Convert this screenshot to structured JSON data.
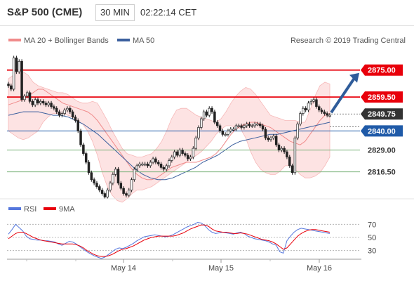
{
  "header": {
    "title": "S&P 500 (CME)",
    "timeframe": "30 MIN",
    "time": "02:22:14 CET"
  },
  "legend": {
    "ma20_bb": "MA 20 + Bollinger Bands",
    "ma50": "MA 50",
    "credit": "Research © 2019 Trading Central",
    "rsi": "RSI",
    "ma9": "9MA"
  },
  "colors": {
    "resistance": "#e8000b",
    "pivot": "#1f5aa8",
    "support": "#76b176",
    "last": "#333333",
    "band_fill": "#fde3e3",
    "ma20": "#f08b8b",
    "ma50": "#3b5f9e",
    "rsi": "#5577dd",
    "ma9": "#e8000b",
    "arrow": "#2f5c9a"
  },
  "chart_data": {
    "type": "line",
    "x_ticks": [
      "May 14",
      "May 15",
      "May 16"
    ],
    "ylim": [
      2803,
      2887
    ],
    "levels": [
      {
        "label": "2875.00",
        "value": 2875.0,
        "kind": "resistance"
      },
      {
        "label": "2859.50",
        "value": 2859.5,
        "kind": "resistance"
      },
      {
        "label": "2849.75",
        "value": 2849.75,
        "kind": "last"
      },
      {
        "label": "2840.00",
        "value": 2840.0,
        "kind": "pivot"
      },
      {
        "label": "2829.00",
        "value": 2829.0,
        "kind": "support"
      },
      {
        "label": "2816.50",
        "value": 2816.5,
        "kind": "support"
      }
    ],
    "price": [
      2866,
      2864,
      2882,
      2874,
      2880,
      2858,
      2860,
      2862,
      2857,
      2855,
      2858,
      2856,
      2857,
      2856,
      2855,
      2856,
      2854,
      2853,
      2851,
      2849,
      2850,
      2852,
      2853,
      2851,
      2848,
      2846,
      2840,
      2832,
      2827,
      2822,
      2816,
      2812,
      2810,
      2808,
      2806,
      2804,
      2802,
      2806,
      2810,
      2815,
      2818,
      2810,
      2807,
      2804,
      2803,
      2806,
      2812,
      2818,
      2820,
      2821,
      2821,
      2821,
      2820,
      2822,
      2824,
      2822,
      2821,
      2819,
      2818,
      2820,
      2823,
      2825,
      2828,
      2826,
      2829,
      2827,
      2826,
      2824,
      2825,
      2830,
      2836,
      2842,
      2847,
      2851,
      2849,
      2853,
      2851,
      2845,
      2843,
      2840,
      2838,
      2838,
      2840,
      2841,
      2841,
      2843,
      2843,
      2842,
      2843,
      2844,
      2843,
      2843,
      2844,
      2844,
      2843,
      2841,
      2836,
      2835,
      2836,
      2837,
      2832,
      2829,
      2830,
      2828,
      2825,
      2820,
      2816,
      2836,
      2844,
      2850,
      2853,
      2852,
      2856,
      2857,
      2858,
      2854,
      2852,
      2851,
      2850,
      2849,
      2849
    ],
    "ma20": [
      2855,
      2856,
      2857,
      2858,
      2860,
      2862,
      2864,
      2864,
      2862,
      2860,
      2858,
      2856,
      2855,
      2854,
      2853,
      2852,
      2851,
      2849,
      2846,
      2842,
      2838,
      2834,
      2830,
      2826,
      2822,
      2818,
      2815,
      2813,
      2812,
      2812,
      2813,
      2815,
      2817,
      2819,
      2820,
      2821,
      2822,
      2822,
      2822,
      2823,
      2824,
      2825,
      2827,
      2830,
      2834,
      2838,
      2841,
      2843,
      2844,
      2845,
      2845,
      2844,
      2843,
      2842,
      2840,
      2838,
      2836,
      2834,
      2833,
      2832,
      2834,
      2838,
      2842,
      2846,
      2849,
      2850
    ],
    "bb_upper": [
      2870,
      2872,
      2875,
      2874,
      2872,
      2868,
      2866,
      2865,
      2864,
      2863,
      2862,
      2862,
      2861,
      2859,
      2857,
      2856,
      2856,
      2857,
      2856,
      2851,
      2846,
      2840,
      2835,
      2830,
      2827,
      2826,
      2825,
      2825,
      2826,
      2827,
      2830,
      2834,
      2840,
      2847,
      2852,
      2853,
      2853,
      2851,
      2849,
      2848,
      2847,
      2846,
      2845,
      2847,
      2851,
      2856,
      2860,
      2863,
      2865,
      2864,
      2861,
      2857,
      2853,
      2849,
      2848,
      2847,
      2846,
      2846,
      2846,
      2845,
      2845,
      2852,
      2860,
      2866,
      2868,
      2867
    ],
    "bb_lower": [
      2840,
      2838,
      2836,
      2835,
      2836,
      2838,
      2840,
      2845,
      2848,
      2850,
      2850,
      2850,
      2849,
      2848,
      2846,
      2844,
      2840,
      2834,
      2826,
      2816,
      2808,
      2803,
      2800,
      2799,
      2801,
      2804,
      2806,
      2806,
      2807,
      2808,
      2810,
      2812,
      2814,
      2816,
      2818,
      2820,
      2822,
      2824,
      2826,
      2828,
      2831,
      2834,
      2838,
      2841,
      2843,
      2843,
      2842,
      2841,
      2836,
      2828,
      2822,
      2818,
      2816,
      2815,
      2815,
      2817,
      2820,
      2820,
      2818,
      2815,
      2813,
      2813,
      2814,
      2816,
      2820,
      2825
    ],
    "ma50": [
      2849,
      2850,
      2851,
      2851,
      2851,
      2850,
      2849,
      2849,
      2848,
      2846,
      2844,
      2841,
      2838,
      2834,
      2830,
      2826,
      2822,
      2818,
      2815,
      2813,
      2812,
      2812,
      2813,
      2815,
      2817,
      2819,
      2822,
      2824,
      2826,
      2829,
      2832,
      2834,
      2835,
      2836,
      2837,
      2838,
      2838,
      2839,
      2840,
      2841,
      2842,
      2843,
      2844,
      2845
    ],
    "rsi": [
      55,
      62,
      70,
      65,
      60,
      52,
      48,
      47,
      46,
      46,
      45,
      45,
      44,
      43,
      40,
      38,
      41,
      44,
      43,
      40,
      36,
      32,
      28,
      25,
      22,
      20,
      18,
      20,
      24,
      28,
      32,
      34,
      33,
      35,
      38,
      41,
      45,
      48,
      51,
      52,
      53,
      54,
      53,
      52,
      51,
      52,
      54,
      57,
      60,
      63,
      66,
      68,
      70,
      73,
      72,
      68,
      62,
      58,
      56,
      57,
      58,
      57,
      56,
      55,
      57,
      58,
      56,
      52,
      50,
      48,
      47,
      46,
      45,
      43,
      40,
      38,
      28,
      26,
      45,
      52,
      58,
      62,
      64,
      63,
      62,
      61,
      60,
      59,
      58,
      57,
      56
    ],
    "rsi_ma9": [
      48,
      52,
      56,
      58,
      58,
      56,
      53,
      50,
      48,
      46,
      45,
      44,
      43,
      42,
      41,
      40,
      40,
      40,
      40,
      39,
      37,
      34,
      30,
      27,
      24,
      22,
      21,
      21,
      22,
      24,
      27,
      30,
      32,
      33,
      35,
      37,
      40,
      43,
      46,
      48,
      50,
      51,
      52,
      52,
      52,
      52,
      52,
      53,
      55,
      57,
      60,
      63,
      65,
      67,
      69,
      69,
      67,
      63,
      60,
      59,
      58,
      58,
      57,
      56,
      56,
      57,
      56,
      55,
      53,
      51,
      49,
      47,
      46,
      45,
      43,
      40,
      36,
      32,
      34,
      40,
      46,
      52,
      56,
      59,
      61,
      62,
      62,
      61,
      60,
      59,
      58
    ],
    "rsi_ylim": [
      20,
      80
    ],
    "rsi_ticks": [
      "70",
      "50",
      "30"
    ],
    "rsi_tick_values": [
      70,
      50,
      30
    ],
    "arrow": {
      "from": 2849.75,
      "to": 2875.0
    }
  }
}
